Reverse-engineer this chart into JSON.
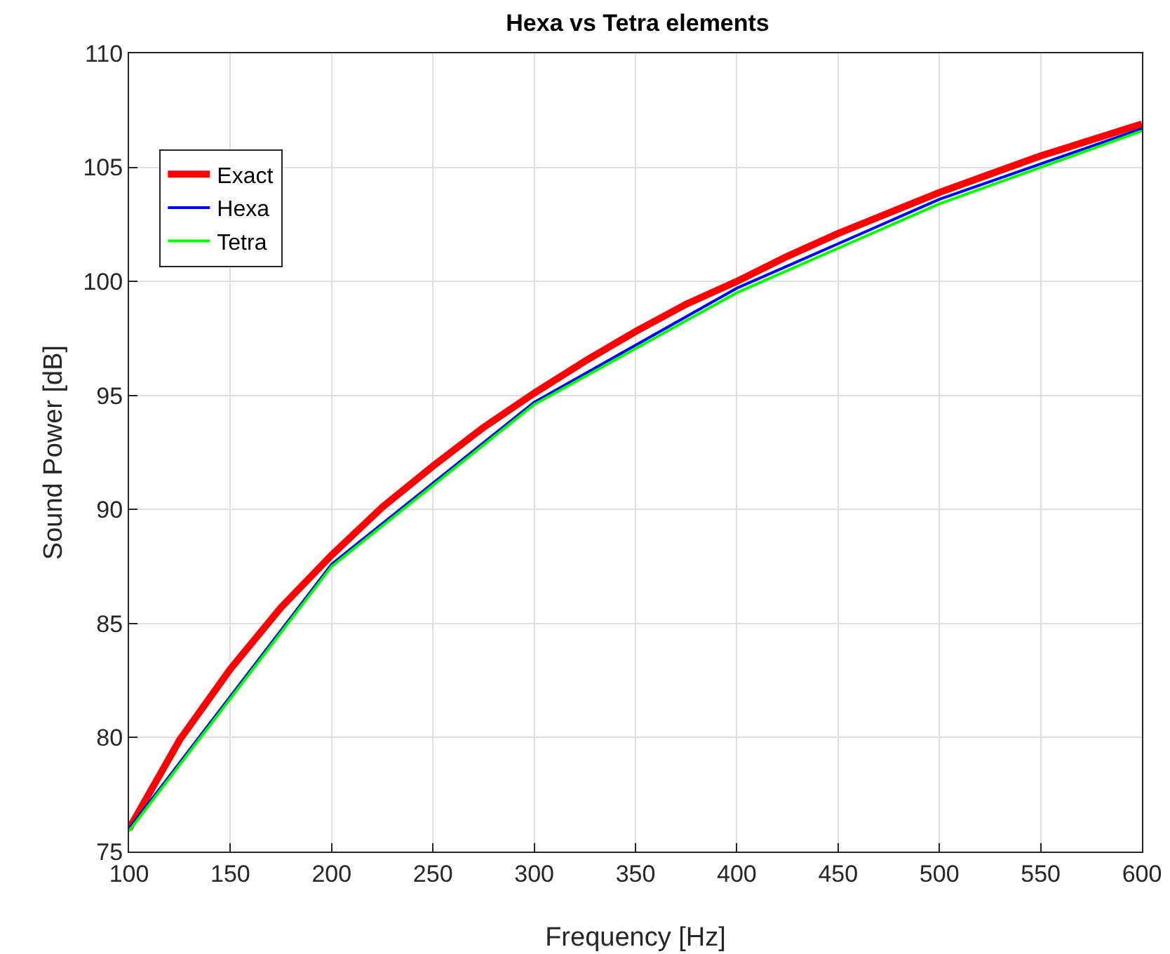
{
  "chart_data": {
    "type": "line",
    "title": "Hexa vs Tetra elements",
    "xlabel": "Frequency [Hz]",
    "ylabel": "Sound Power [dB]",
    "xlim": [
      100,
      600
    ],
    "xticks": [
      100,
      150,
      200,
      250,
      300,
      350,
      400,
      450,
      500,
      550,
      600
    ],
    "ylim": [
      75,
      110
    ],
    "yticks": [
      75,
      80,
      85,
      90,
      95,
      100,
      105,
      110
    ],
    "grid": true,
    "legend": "top left",
    "marker": "none",
    "line_style": "solid",
    "series": [
      {
        "name": "Exact",
        "color": "#ff0000",
        "x": [
          100,
          125,
          150,
          175,
          200,
          225,
          250,
          275,
          300,
          325,
          350,
          375,
          400,
          425,
          450,
          475,
          500,
          525,
          550,
          575,
          600
        ],
        "values": [
          76.0,
          79.9,
          83.0,
          85.7,
          88.0,
          90.1,
          91.9,
          93.6,
          95.1,
          96.5,
          97.8,
          99.0,
          100.0,
          101.1,
          102.1,
          103.0,
          103.9,
          104.7,
          105.5,
          106.2,
          106.9
        ]
      },
      {
        "name": "Hexa",
        "color": "#0000ff",
        "x": [
          100,
          200,
          300,
          400,
          500,
          600
        ],
        "values": [
          76.0,
          87.6,
          94.7,
          99.7,
          103.6,
          106.7
        ]
      },
      {
        "name": "Tetra",
        "color": "#00ff00",
        "x": [
          100,
          200,
          300,
          400,
          500,
          600
        ],
        "values": [
          75.9,
          87.5,
          94.6,
          99.5,
          103.4,
          106.6
        ]
      }
    ]
  }
}
